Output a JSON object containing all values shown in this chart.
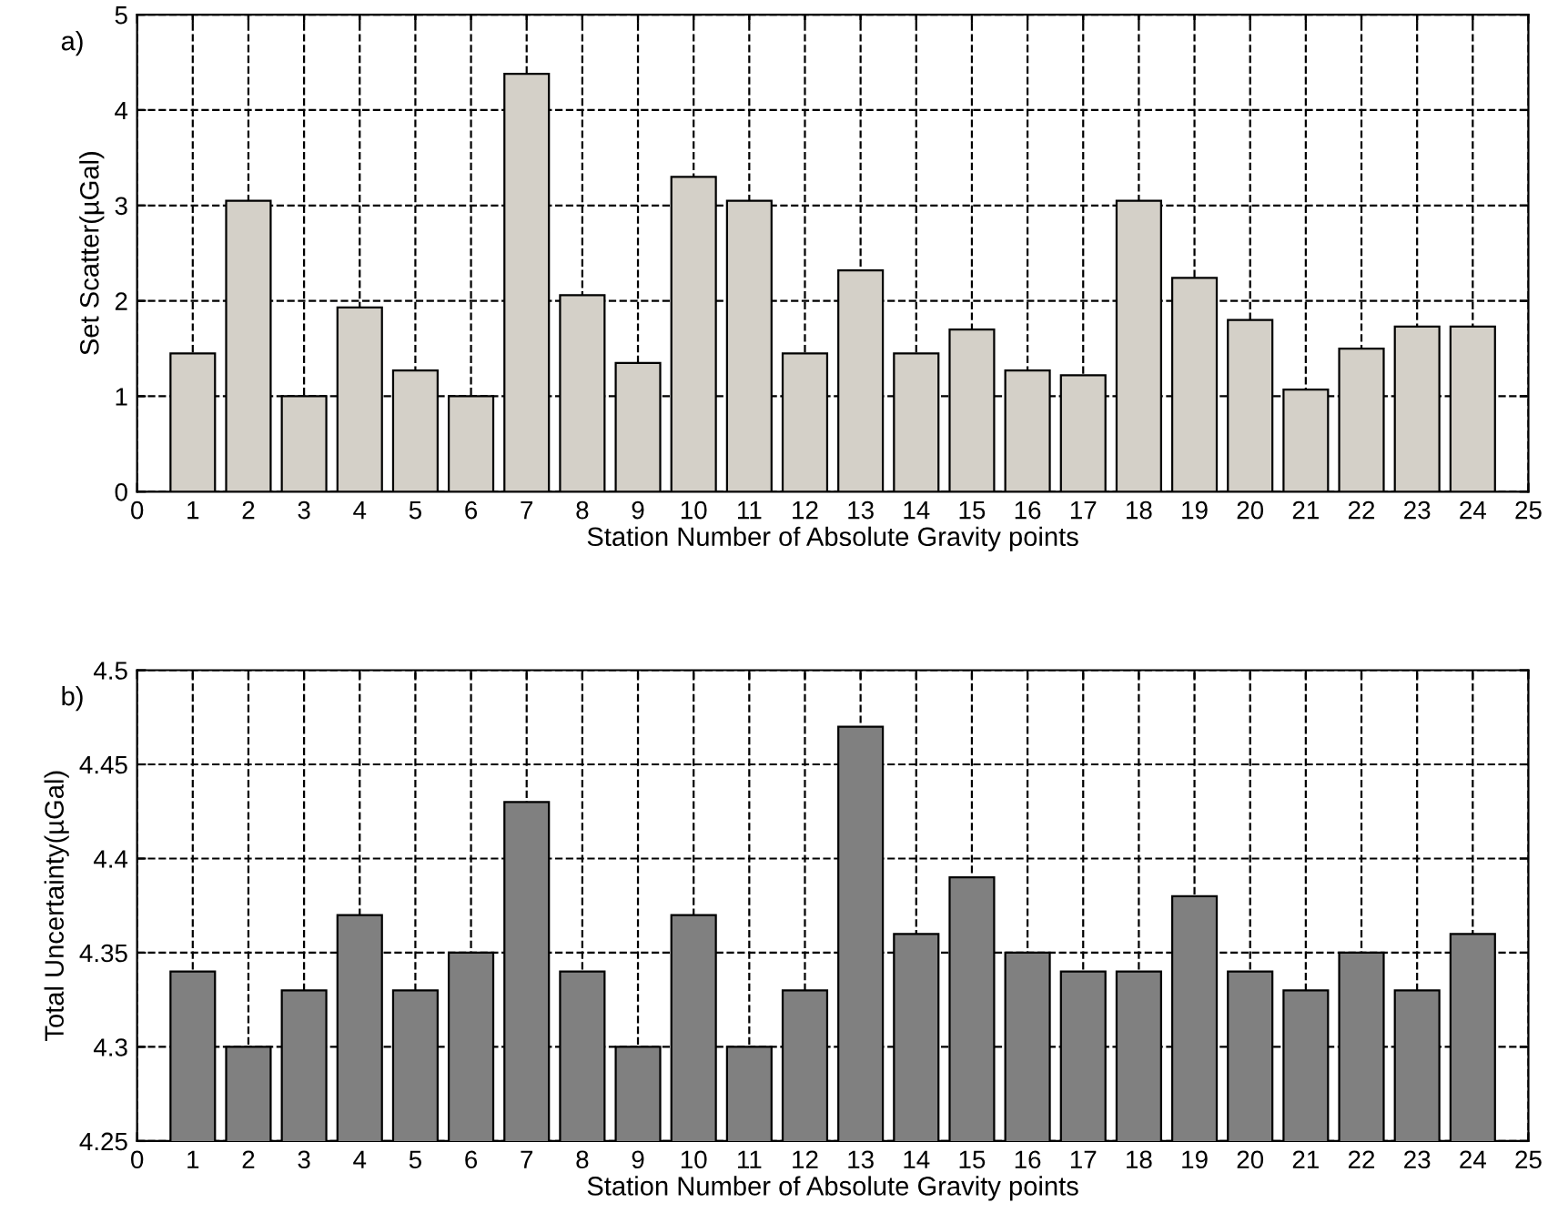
{
  "chart_data": [
    {
      "type": "bar",
      "ylabel": "Set Scatter(µGal)",
      "xlabel": "Station Number of Absolute Gravity points",
      "annotations": [
        "a)"
      ],
      "x": [
        1,
        2,
        3,
        4,
        5,
        6,
        7,
        8,
        9,
        10,
        11,
        12,
        13,
        14,
        15,
        16,
        17,
        18,
        19,
        20,
        21,
        22,
        23,
        24
      ],
      "values": [
        1.45,
        3.05,
        1.0,
        1.93,
        1.27,
        1.0,
        4.38,
        2.06,
        1.35,
        3.3,
        3.05,
        1.45,
        2.32,
        1.45,
        1.7,
        1.27,
        1.22,
        3.05,
        2.24,
        1.8,
        1.07,
        1.5,
        1.73,
        1.73
      ],
      "color": "#d4d0c8",
      "xlim": [
        0,
        25
      ],
      "xticks": [
        0,
        1,
        2,
        3,
        4,
        5,
        6,
        7,
        8,
        9,
        10,
        11,
        12,
        13,
        14,
        15,
        16,
        17,
        18,
        19,
        20,
        21,
        22,
        23,
        24,
        25
      ],
      "ylim": [
        0,
        5
      ],
      "yticks": [
        0,
        1,
        2,
        3,
        4,
        5
      ],
      "grid": true,
      "line_style": "dashed"
    },
    {
      "type": "bar",
      "ylabel": "Total Uncertainty(µGal)",
      "xlabel": "Station Number of Absolute Gravity points",
      "annotations": [
        "b)"
      ],
      "x": [
        1,
        2,
        3,
        4,
        5,
        6,
        7,
        8,
        9,
        10,
        11,
        12,
        13,
        14,
        15,
        16,
        17,
        18,
        19,
        20,
        21,
        22,
        23,
        24
      ],
      "values": [
        4.34,
        4.3,
        4.33,
        4.37,
        4.33,
        4.35,
        4.43,
        4.34,
        4.3,
        4.37,
        4.3,
        4.33,
        4.47,
        4.36,
        4.39,
        4.35,
        4.34,
        4.34,
        4.38,
        4.34,
        4.33,
        4.35,
        4.33,
        4.36
      ],
      "color": "#808080",
      "xlim": [
        0,
        25
      ],
      "xticks": [
        0,
        1,
        2,
        3,
        4,
        5,
        6,
        7,
        8,
        9,
        10,
        11,
        12,
        13,
        14,
        15,
        16,
        17,
        18,
        19,
        20,
        21,
        22,
        23,
        24,
        25
      ],
      "ylim": [
        4.25,
        4.5
      ],
      "yticks": [
        4.25,
        4.3,
        4.35,
        4.4,
        4.45,
        4.5
      ],
      "grid": true,
      "line_style": "dashed"
    }
  ]
}
